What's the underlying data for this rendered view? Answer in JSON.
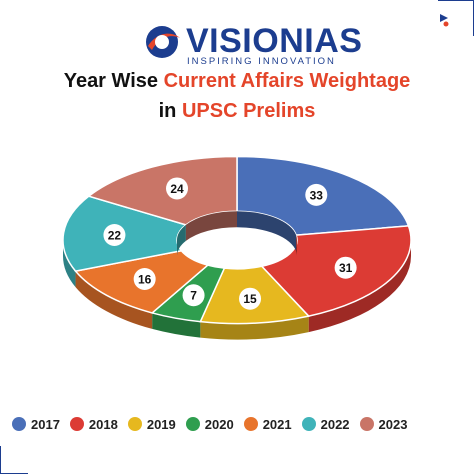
{
  "header": {
    "brand_first": "VISION",
    "brand_second": "IAS",
    "tagline": "INSPIRING INNOVATION",
    "title_line1_plain": "Year Wise ",
    "title_line1_highlight": "Current Affairs Weightage",
    "title_line2_plain": "in ",
    "title_line2_highlight": "UPSC Prelims"
  },
  "colors": {
    "brand_blue": "#1c3d8f",
    "accent_red": "#e4452a"
  },
  "icons": [
    "vision-ias-logo-icon"
  ],
  "chart_data": {
    "type": "pie",
    "style": "3d-doughnut",
    "categories": [
      "2017",
      "2018",
      "2019",
      "2020",
      "2021",
      "2022",
      "2023"
    ],
    "values": [
      33,
      31,
      15,
      7,
      16,
      22,
      24
    ],
    "colors": [
      "#4a6fb8",
      "#dc3b34",
      "#e6b81f",
      "#2f9e4f",
      "#e8742c",
      "#3fb3b9",
      "#c97567"
    ],
    "legend_position": "bottom",
    "data_labels": true
  }
}
